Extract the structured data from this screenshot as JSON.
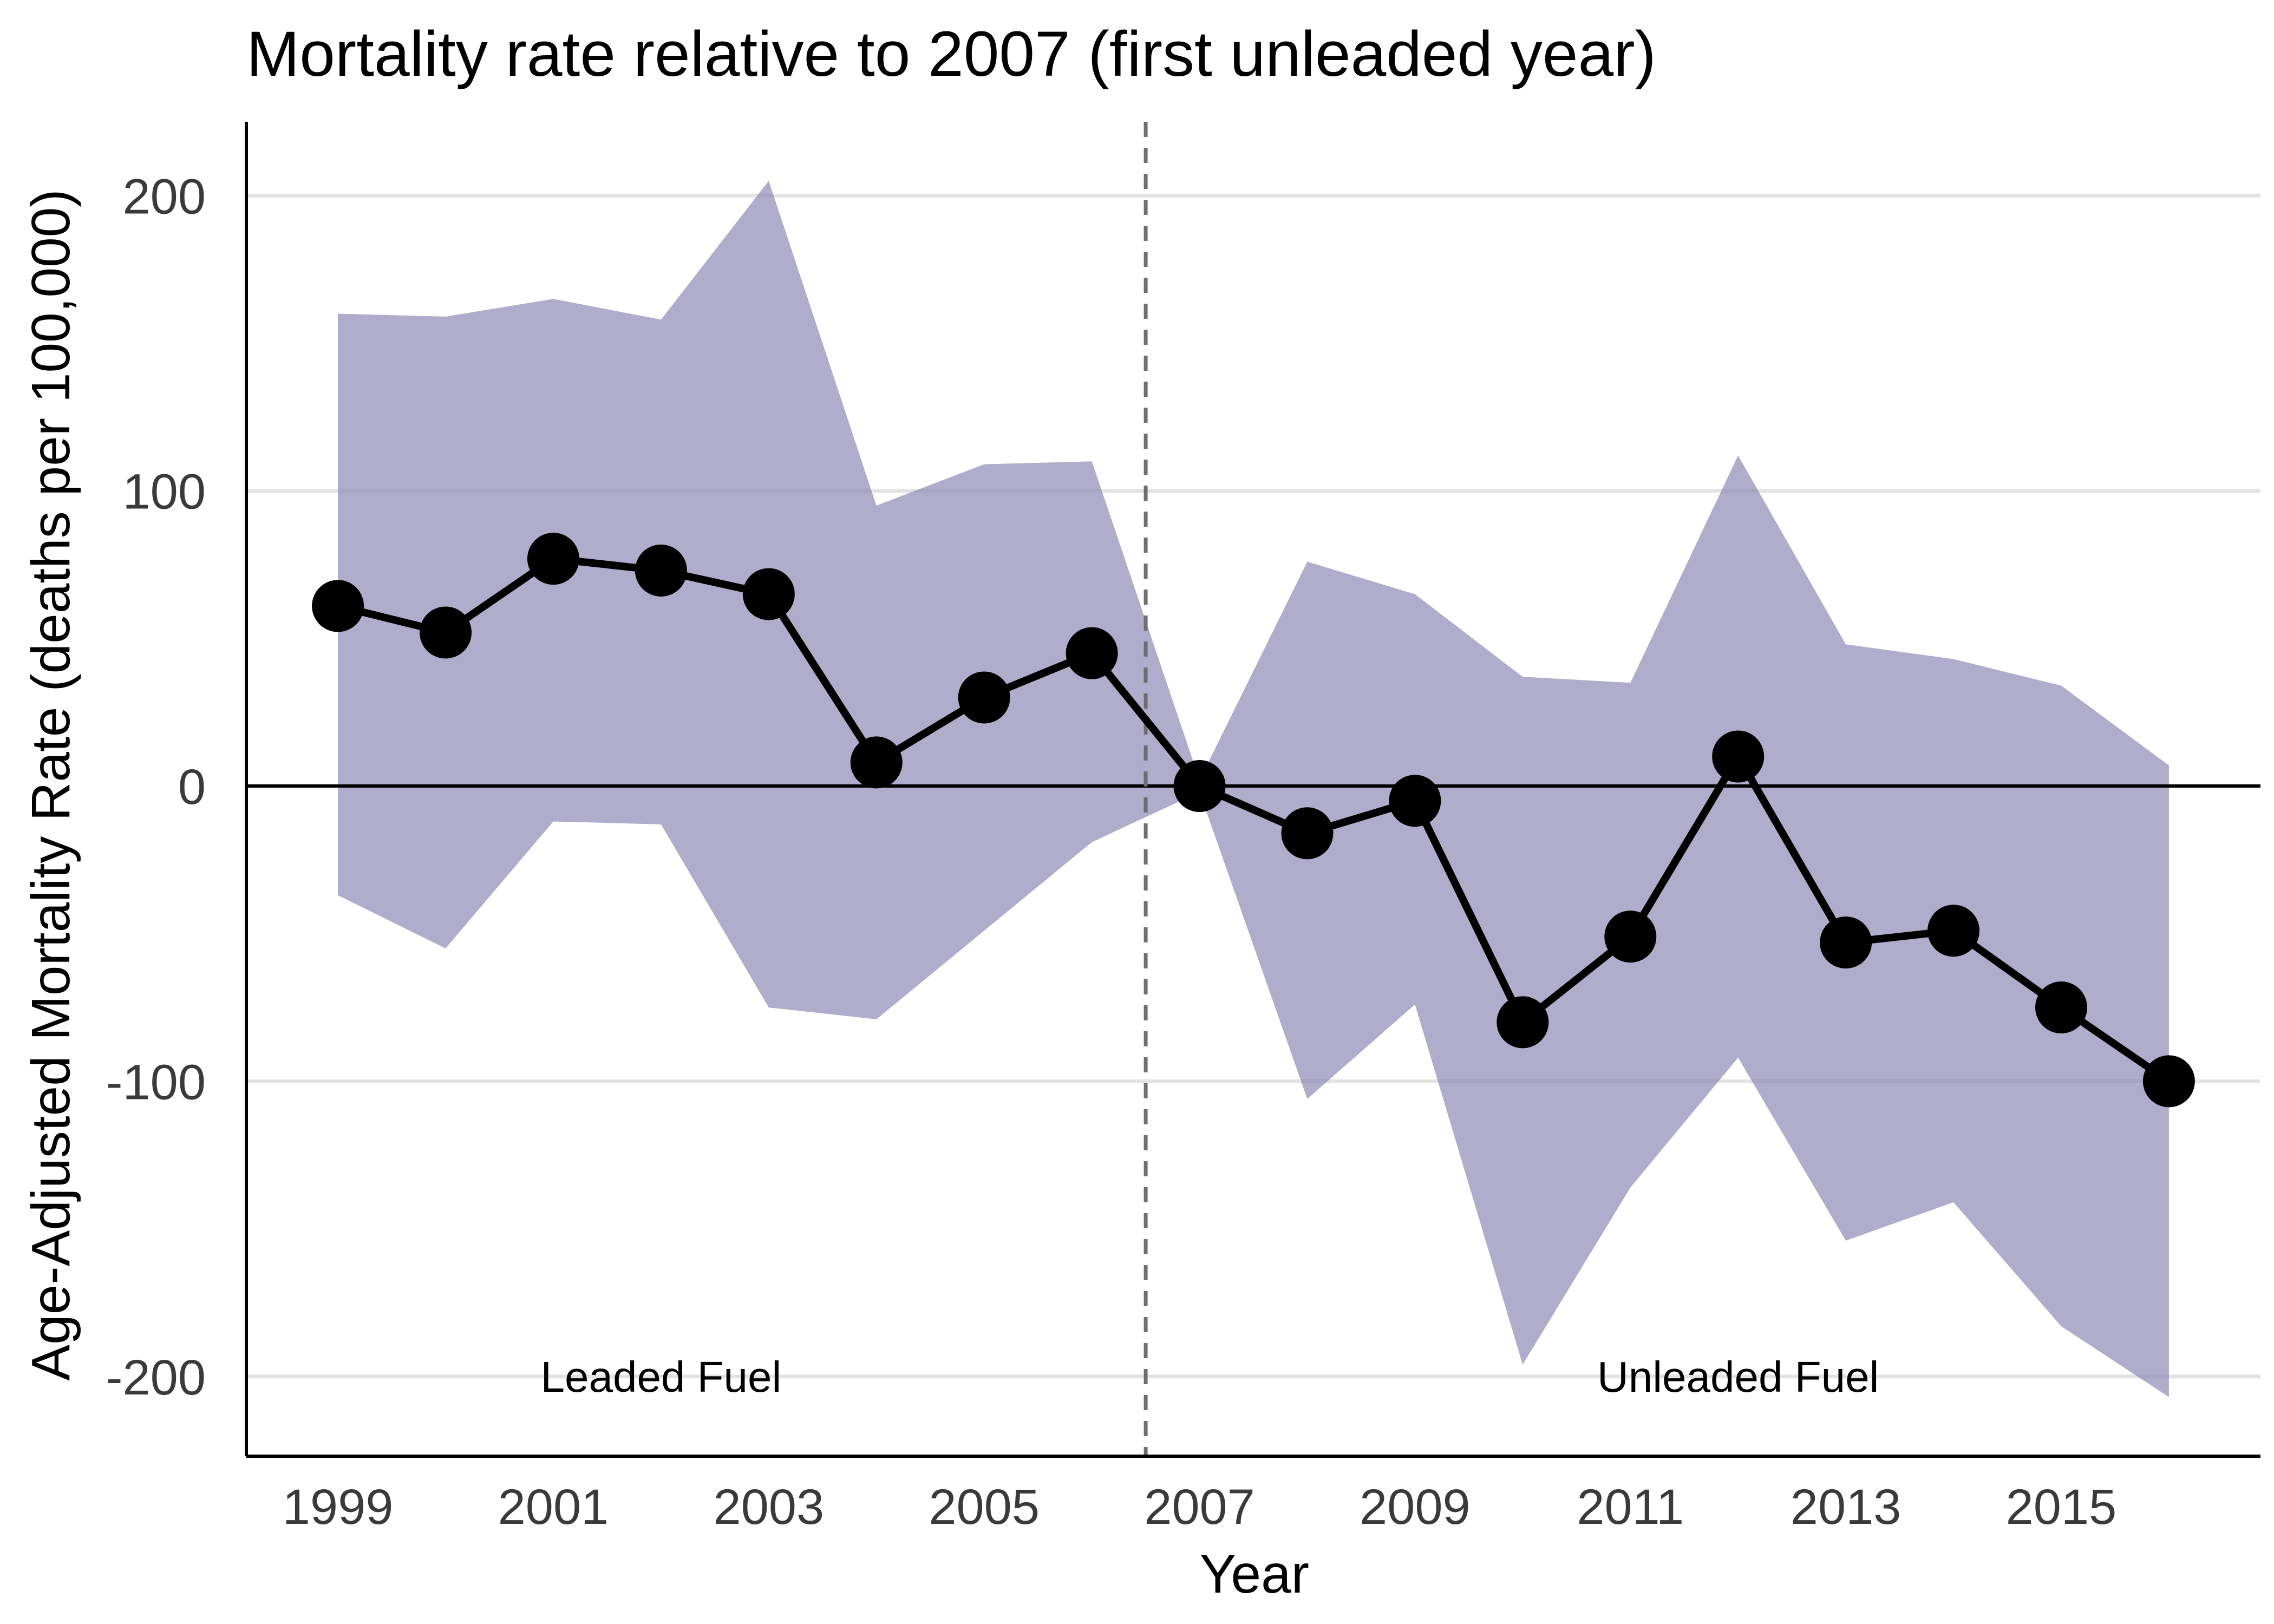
{
  "chart_data": {
    "type": "line",
    "title": "Mortality rate relative to 2007 (first unleaded year)",
    "xlabel": "Year",
    "ylabel": "Age-Adjusted Mortality Rate (deaths per 100,000)",
    "xlim": [
      1998.15,
      2016.85
    ],
    "ylim": [
      -227,
      225
    ],
    "x_ticks": [
      1999,
      2001,
      2003,
      2005,
      2007,
      2009,
      2011,
      2013,
      2015
    ],
    "x_tick_labels": [
      "1999",
      "2001",
      "2003",
      "2005",
      "2007",
      "2009",
      "2011",
      "2013",
      "2015"
    ],
    "y_ticks": [
      -200,
      -100,
      0,
      100,
      200
    ],
    "y_tick_labels": [
      "-200",
      "-100",
      "0",
      "100",
      "200"
    ],
    "grid": "horizontal",
    "reference_lines": {
      "horizontal_y": 0,
      "vertical_dashed_x": 2006.5
    },
    "x": [
      1999,
      2000,
      2001,
      2002,
      2003,
      2004,
      2005,
      2006,
      2007,
      2008,
      2009,
      2010,
      2011,
      2012,
      2013,
      2014,
      2015,
      2016
    ],
    "series": [
      {
        "values": [
          61,
          52,
          77,
          73,
          65,
          8,
          30,
          45,
          0,
          -16,
          -5,
          -80,
          -51,
          10,
          -53,
          -49,
          -75,
          -100
        ],
        "lower": [
          -37,
          -55,
          -12,
          -13,
          -75,
          -79,
          -49,
          -19,
          -2,
          -106,
          -74,
          -196,
          -136,
          -92,
          -154,
          -141,
          -183,
          -207
        ],
        "upper": [
          160,
          159,
          165,
          158,
          205,
          95,
          109,
          110,
          2,
          76,
          65,
          37,
          35,
          112,
          48,
          43,
          34,
          7
        ]
      }
    ],
    "annotations": [
      {
        "text": "Leaded Fuel",
        "x": 2002,
        "y": -200
      },
      {
        "text": "Unleaded Fuel",
        "x": 2012,
        "y": -200
      }
    ],
    "colors": {
      "ribbon": "#8a84b3",
      "line": "#000000",
      "points": "#000000",
      "grid": "#e3e3e3",
      "dashed_line": "#6e6e6e",
      "axis": "#000000"
    }
  }
}
